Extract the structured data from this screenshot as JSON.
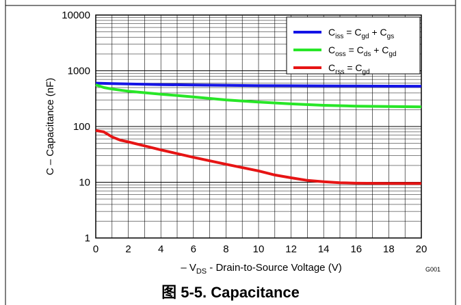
{
  "chart_data": {
    "type": "line",
    "y_scale": "log",
    "xlim": [
      0,
      20
    ],
    "ylim": [
      1,
      10000
    ],
    "x_ticks": [
      "0",
      "2",
      "4",
      "6",
      "8",
      "10",
      "12",
      "14",
      "16",
      "18",
      "20"
    ],
    "y_ticks": [
      "1",
      "10",
      "100",
      "1000",
      "10000"
    ],
    "grid": true,
    "legend_position": "top-right",
    "ylabel": "C – Capacitance (nF)",
    "xlabel": {
      "prefix": "– V",
      "sub": "DS",
      "suffix": " - Drain-to-Source Voltage (V)"
    },
    "code": "G001",
    "series": [
      {
        "legend": [
          "C",
          "iss",
          " = C",
          "gd",
          " + C",
          "gs"
        ],
        "color": "#1414e6",
        "x": [
          0,
          1,
          2,
          4,
          6,
          8,
          10,
          12,
          14,
          16,
          18,
          20
        ],
        "y": [
          600,
          590,
          580,
          565,
          555,
          548,
          542,
          538,
          535,
          532,
          530,
          528
        ]
      },
      {
        "legend": [
          "C",
          "oss",
          " = C",
          "ds",
          " + C",
          "gd"
        ],
        "color": "#28e628",
        "x": [
          0,
          0.5,
          1,
          2,
          4,
          6,
          8,
          10,
          12,
          14,
          16,
          18,
          20
        ],
        "y": [
          560,
          500,
          470,
          430,
          380,
          340,
          300,
          275,
          255,
          240,
          232,
          228,
          225
        ]
      },
      {
        "legend": [
          "C",
          "rss",
          " =  C",
          "gd",
          "",
          ""
        ],
        "color": "#e61414",
        "x": [
          0,
          0.5,
          1,
          1.5,
          2,
          3,
          4,
          6,
          8,
          10,
          11,
          12,
          13,
          14,
          15,
          16,
          18,
          20
        ],
        "y": [
          85,
          80,
          65,
          57,
          53,
          45,
          38,
          28,
          21,
          16,
          13.5,
          12,
          10.8,
          10.2,
          9.8,
          9.6,
          9.5,
          9.5
        ]
      }
    ]
  },
  "caption": "图 5-5. Capacitance"
}
